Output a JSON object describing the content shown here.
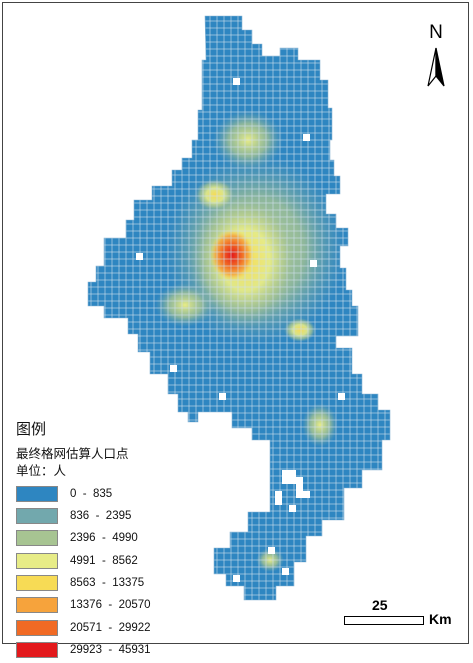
{
  "legend": {
    "title": "图例",
    "subtitle": "最终格网估算人口点",
    "unit": "单位：人",
    "classes": [
      {
        "label": "0  -  835",
        "color": "#2e86c1"
      },
      {
        "label": "836  -  2395",
        "color": "#72a8ad"
      },
      {
        "label": "2396  -  4990",
        "color": "#a7c492"
      },
      {
        "label": "4991  -  8562",
        "color": "#e7ec87"
      },
      {
        "label": "8563  -  13375",
        "color": "#f7db55"
      },
      {
        "label": "13376  -  20570",
        "color": "#f6a33c"
      },
      {
        "label": "20571  -  29922",
        "color": "#f16a24"
      },
      {
        "label": "29923  -  45931",
        "color": "#e3191c"
      }
    ]
  },
  "north_arrow": {
    "label": "N"
  },
  "scale_bar": {
    "value": "25",
    "unit": "Km"
  },
  "colors": {
    "grid_line": "#cfe0ec",
    "background": "#ffffff",
    "frame": "#444444"
  }
}
